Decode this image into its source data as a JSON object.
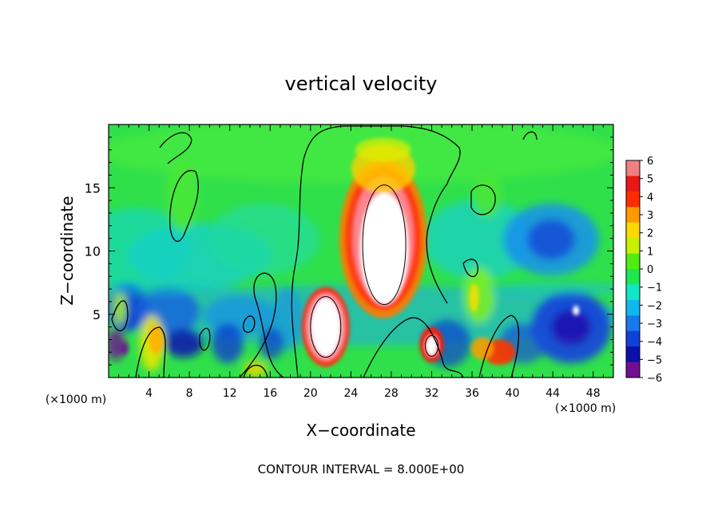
{
  "chart_data": {
    "type": "heatmap",
    "title": "vertical velocity",
    "xlabel": "X−coordinate",
    "ylabel": "Z−coordinate",
    "x_unit_left": "(×1000 m)",
    "x_unit_right": "(×1000 m)",
    "footer": "CONTOUR INTERVAL = 8.000E+00",
    "xlim": [
      0,
      50
    ],
    "ylim": [
      0,
      20
    ],
    "x_ticks": [
      4,
      8,
      12,
      16,
      20,
      24,
      28,
      32,
      36,
      40,
      44,
      48
    ],
    "x_tick_labels": [
      "4",
      "8",
      "12",
      "16",
      "20",
      "24",
      "28",
      "32",
      "36",
      "40",
      "44",
      "48"
    ],
    "y_ticks": [
      5,
      10,
      15
    ],
    "y_tick_labels": [
      "5",
      "10",
      "15"
    ],
    "colorbar": {
      "min": -6,
      "max": 6,
      "ticks": [
        6,
        5,
        4,
        3,
        2,
        1,
        0,
        -1,
        -2,
        -3,
        -4,
        -5,
        -6
      ],
      "tick_labels": [
        "6",
        "5",
        "4",
        "3",
        "2",
        "1",
        "0",
        "−1",
        "−2",
        "−3",
        "−4",
        "−5",
        "−6"
      ],
      "colors": [
        "#f08080",
        "#e81818",
        "#ff2c00",
        "#ff9a00",
        "#ffd800",
        "#c8f000",
        "#50ee10",
        "#1ee850",
        "#12e6c8",
        "#11b8f0",
        "#1a78ee",
        "#1040d8",
        "#0a10a8",
        "#701090"
      ]
    },
    "features": [
      {
        "type": "updraft-core",
        "x": 27,
        "z": 10.5,
        "peak": 9
      },
      {
        "type": "updraft-core",
        "x": 21.5,
        "z": 4,
        "peak": 8
      },
      {
        "type": "updraft",
        "x": 32,
        "z": 2.5,
        "peak": 7
      },
      {
        "type": "updraft",
        "x": 38.5,
        "z": 2,
        "peak": 4
      },
      {
        "type": "updraft",
        "x": 4.5,
        "z": 3,
        "peak": 2.5
      },
      {
        "type": "downdraft",
        "x": 44,
        "z": 11.5,
        "peak": -4
      },
      {
        "type": "downdraft",
        "x": 46,
        "z": 4.5,
        "peak": -5
      },
      {
        "type": "downdraft",
        "x": 1.5,
        "z": 4.5,
        "peak": -4.5
      },
      {
        "type": "downdraft",
        "x": 8,
        "z": 3,
        "peak": -4
      }
    ]
  }
}
